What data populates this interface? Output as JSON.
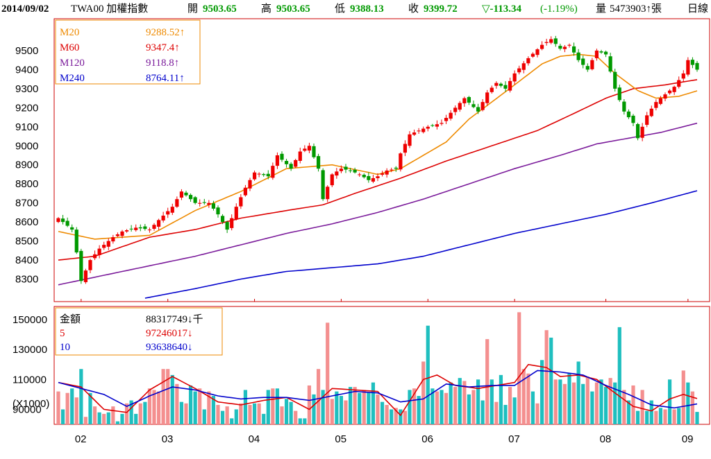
{
  "header": {
    "date": "2014/09/02",
    "symbol": "TWA00 加權指數",
    "open_label": "開",
    "open_value": "9503.65",
    "high_label": "高",
    "high_value": "9503.65",
    "low_label": "低",
    "low_value": "9388.13",
    "close_label": "收",
    "close_value": "9399.72",
    "change": "▽-113.34",
    "change_pct": "(-1.19%)",
    "volume_label": "量",
    "volume_value": "5473903↑張",
    "period": "日線"
  },
  "colors": {
    "up": "#ee0000",
    "down": "#009900",
    "ma20": "#ee8a00",
    "ma60": "#dd0000",
    "ma120": "#7a1a9a",
    "ma240": "#0000cc",
    "vol_up": "#f48f8f",
    "vol_down": "#1fbfbf",
    "vma5": "#dd0000",
    "vma10": "#0000cc",
    "frame": "#cc0000"
  },
  "price_legend": [
    {
      "name": "M20",
      "value": "9288.52↑",
      "color": "#ee8a00"
    },
    {
      "name": "M60",
      "value": "9347.4↑",
      "color": "#dd0000"
    },
    {
      "name": "M120",
      "value": "9118.8↑",
      "color": "#7a1a9a"
    },
    {
      "name": "M240",
      "value": "8764.11↑",
      "color": "#0000cc"
    }
  ],
  "volume_legend": [
    {
      "name": "金額",
      "value": "88317749↓千",
      "color": "#000000"
    },
    {
      "name": "5",
      "value": "97246017↓",
      "color": "#dd0000"
    },
    {
      "name": "10",
      "value": "93638640↓",
      "color": "#0000cc"
    }
  ],
  "volume_unit": "(X1000)",
  "chart_data": [
    {
      "type": "candlestick",
      "ylim": [
        8200,
        9620
      ],
      "y_ticks": [
        8300,
        8400,
        8500,
        8600,
        8700,
        8800,
        8900,
        9000,
        9100,
        9200,
        9300,
        9400,
        9500
      ],
      "x_month_ticks": [
        {
          "label": "02",
          "index": 5
        },
        {
          "label": "03",
          "index": 24
        },
        {
          "label": "04",
          "index": 43
        },
        {
          "label": "05",
          "index": 62
        },
        {
          "label": "06",
          "index": 81
        },
        {
          "label": "07",
          "index": 100
        },
        {
          "label": "08",
          "index": 120
        },
        {
          "label": "09",
          "index": 138
        }
      ],
      "num_days": 141,
      "close_anchors": [
        [
          0,
          8620
        ],
        [
          3,
          8560
        ],
        [
          4,
          8440
        ],
        [
          5,
          8290
        ],
        [
          7,
          8400
        ],
        [
          9,
          8460
        ],
        [
          12,
          8520
        ],
        [
          14,
          8550
        ],
        [
          17,
          8570
        ],
        [
          20,
          8560
        ],
        [
          22,
          8610
        ],
        [
          25,
          8680
        ],
        [
          27,
          8760
        ],
        [
          30,
          8700
        ],
        [
          33,
          8700
        ],
        [
          35,
          8640
        ],
        [
          37,
          8560
        ],
        [
          39,
          8680
        ],
        [
          41,
          8780
        ],
        [
          43,
          8860
        ],
        [
          46,
          8840
        ],
        [
          48,
          8950
        ],
        [
          51,
          8880
        ],
        [
          53,
          8970
        ],
        [
          55,
          9000
        ],
        [
          57,
          8880
        ],
        [
          58,
          8720
        ],
        [
          60,
          8850
        ],
        [
          62,
          8880
        ],
        [
          64,
          8870
        ],
        [
          66,
          8850
        ],
        [
          68,
          8820
        ],
        [
          70,
          8840
        ],
        [
          72,
          8870
        ],
        [
          74,
          8880
        ],
        [
          75,
          8960
        ],
        [
          77,
          9060
        ],
        [
          79,
          9080
        ],
        [
          81,
          9100
        ],
        [
          84,
          9120
        ],
        [
          87,
          9200
        ],
        [
          89,
          9250
        ],
        [
          92,
          9180
        ],
        [
          94,
          9280
        ],
        [
          96,
          9330
        ],
        [
          98,
          9300
        ],
        [
          100,
          9380
        ],
        [
          103,
          9460
        ],
        [
          106,
          9530
        ],
        [
          108,
          9560
        ],
        [
          110,
          9510
        ],
        [
          112,
          9530
        ],
        [
          114,
          9450
        ],
        [
          116,
          9400
        ],
        [
          118,
          9500
        ],
        [
          120,
          9480
        ],
        [
          122,
          9300
        ],
        [
          124,
          9180
        ],
        [
          126,
          9120
        ],
        [
          127,
          9040
        ],
        [
          129,
          9160
        ],
        [
          131,
          9230
        ],
        [
          133,
          9270
        ],
        [
          135,
          9310
        ],
        [
          137,
          9380
        ],
        [
          138,
          9450
        ],
        [
          140,
          9399.72
        ]
      ],
      "ma20": {
        "label": "M20",
        "start": 0,
        "anchors": [
          [
            0,
            8550
          ],
          [
            8,
            8510
          ],
          [
            20,
            8530
          ],
          [
            30,
            8660
          ],
          [
            40,
            8760
          ],
          [
            50,
            8880
          ],
          [
            60,
            8900
          ],
          [
            70,
            8850
          ],
          [
            75,
            8880
          ],
          [
            85,
            9020
          ],
          [
            90,
            9140
          ],
          [
            100,
            9320
          ],
          [
            106,
            9430
          ],
          [
            110,
            9470
          ],
          [
            114,
            9480
          ],
          [
            118,
            9470
          ],
          [
            122,
            9380
          ],
          [
            127,
            9290
          ],
          [
            131,
            9250
          ],
          [
            136,
            9260
          ],
          [
            140,
            9288.52
          ]
        ]
      },
      "ma60": {
        "label": "M60",
        "start": 0,
        "anchors": [
          [
            0,
            8400
          ],
          [
            8,
            8420
          ],
          [
            20,
            8520
          ],
          [
            30,
            8560
          ],
          [
            40,
            8620
          ],
          [
            50,
            8660
          ],
          [
            58,
            8690
          ],
          [
            65,
            8750
          ],
          [
            75,
            8830
          ],
          [
            85,
            8920
          ],
          [
            95,
            9000
          ],
          [
            105,
            9080
          ],
          [
            113,
            9170
          ],
          [
            120,
            9250
          ],
          [
            126,
            9300
          ],
          [
            133,
            9320
          ],
          [
            140,
            9347.4
          ]
        ]
      },
      "ma120": {
        "label": "M120",
        "start": 0,
        "anchors": [
          [
            0,
            8270
          ],
          [
            10,
            8320
          ],
          [
            20,
            8370
          ],
          [
            30,
            8420
          ],
          [
            40,
            8480
          ],
          [
            50,
            8540
          ],
          [
            60,
            8590
          ],
          [
            70,
            8650
          ],
          [
            80,
            8720
          ],
          [
            90,
            8800
          ],
          [
            100,
            8880
          ],
          [
            110,
            8950
          ],
          [
            118,
            9010
          ],
          [
            125,
            9040
          ],
          [
            132,
            9070
          ],
          [
            140,
            9118.8
          ]
        ]
      },
      "ma240": {
        "label": "M240",
        "start": 19,
        "anchors": [
          [
            19,
            8200
          ],
          [
            30,
            8250
          ],
          [
            40,
            8300
          ],
          [
            50,
            8340
          ],
          [
            60,
            8360
          ],
          [
            70,
            8380
          ],
          [
            80,
            8420
          ],
          [
            90,
            8480
          ],
          [
            100,
            8540
          ],
          [
            110,
            8590
          ],
          [
            120,
            8640
          ],
          [
            130,
            8700
          ],
          [
            140,
            8764.11
          ]
        ]
      }
    },
    {
      "type": "bar",
      "name": "金額",
      "ylim": [
        80000,
        157000
      ],
      "y_ticks": [
        90000,
        110000,
        130000,
        150000
      ],
      "volumes": [
        102000,
        90000,
        101000,
        104000,
        98000,
        117000,
        85000,
        101000,
        92000,
        88000,
        87000,
        88000,
        92000,
        82000,
        87000,
        94000,
        96000,
        87000,
        94000,
        95000,
        104000,
        103000,
        102000,
        117000,
        117000,
        113000,
        107000,
        95000,
        94000,
        106000,
        102000,
        104000,
        90000,
        102000,
        99000,
        93000,
        89000,
        92000,
        84000,
        90000,
        94000,
        103000,
        93000,
        94000,
        94000,
        87000,
        103000,
        104000,
        104000,
        92000,
        97000,
        95000,
        89000,
        84000,
        84000,
        106000,
        100000,
        117000,
        103000,
        148000,
        97000,
        102000,
        99000,
        96000,
        105000,
        105000,
        101000,
        103000,
        101000,
        108000,
        100000,
        95000,
        93000,
        90000,
        91000,
        90000,
        89000,
        103000,
        104000,
        99000,
        122000,
        146000,
        104000,
        102000,
        103000,
        101000,
        108000,
        105000,
        111000,
        109000,
        100000,
        103000,
        110000,
        96000,
        137000,
        110000,
        95000,
        113000,
        93000,
        105000,
        98000,
        155000,
        117000,
        114000,
        102000,
        94000,
        123000,
        143000,
        138000,
        110000,
        110000,
        107000,
        114000,
        108000,
        122000,
        107000,
        112000,
        102000,
        108000,
        110000,
        105000,
        111000,
        108000,
        145000,
        103000,
        96000,
        106000,
        89000,
        103000,
        89000,
        96000,
        89000,
        91000,
        90000,
        110000,
        90000,
        91000,
        116000,
        108000,
        102000,
        88300
      ],
      "volume_up_days": [
        0,
        2,
        4,
        6,
        8,
        10,
        12,
        15,
        18,
        20,
        21,
        22,
        23,
        24,
        26,
        28,
        31,
        33,
        35,
        37,
        40,
        42,
        44,
        47,
        49,
        52,
        55,
        57,
        59,
        60,
        63,
        65,
        67,
        70,
        72,
        74,
        76,
        78,
        80,
        83,
        85,
        87,
        89,
        91,
        94,
        96,
        99,
        101,
        102,
        103,
        105,
        107,
        109,
        111,
        113,
        116,
        118,
        121,
        124,
        126,
        128,
        131,
        133,
        135,
        137,
        139
      ],
      "vma5": [
        [
          0,
          108000
        ],
        [
          5,
          105000
        ],
        [
          10,
          90000
        ],
        [
          15,
          88000
        ],
        [
          20,
          103000
        ],
        [
          25,
          112000
        ],
        [
          30,
          104000
        ],
        [
          35,
          95000
        ],
        [
          40,
          93000
        ],
        [
          45,
          96000
        ],
        [
          50,
          98000
        ],
        [
          55,
          90000
        ],
        [
          60,
          104000
        ],
        [
          65,
          103000
        ],
        [
          70,
          102000
        ],
        [
          75,
          86000
        ],
        [
          80,
          110000
        ],
        [
          83,
          113000
        ],
        [
          87,
          106000
        ],
        [
          92,
          104000
        ],
        [
          96,
          106000
        ],
        [
          100,
          108000
        ],
        [
          103,
          120000
        ],
        [
          107,
          118000
        ],
        [
          110,
          112000
        ],
        [
          114,
          113000
        ],
        [
          118,
          110000
        ],
        [
          122,
          101000
        ],
        [
          126,
          92000
        ],
        [
          130,
          89000
        ],
        [
          134,
          97000
        ],
        [
          137,
          100000
        ],
        [
          140,
          97246
        ]
      ],
      "vma10": [
        [
          0,
          108000
        ],
        [
          5,
          104000
        ],
        [
          10,
          100000
        ],
        [
          15,
          92000
        ],
        [
          20,
          99000
        ],
        [
          25,
          105000
        ],
        [
          30,
          103000
        ],
        [
          35,
          99000
        ],
        [
          40,
          97000
        ],
        [
          45,
          98000
        ],
        [
          50,
          98000
        ],
        [
          55,
          96000
        ],
        [
          60,
          99000
        ],
        [
          65,
          102000
        ],
        [
          70,
          101000
        ],
        [
          75,
          95000
        ],
        [
          80,
          97000
        ],
        [
          85,
          107000
        ],
        [
          90,
          105000
        ],
        [
          95,
          106000
        ],
        [
          100,
          106000
        ],
        [
          105,
          116000
        ],
        [
          110,
          115000
        ],
        [
          115,
          113000
        ],
        [
          120,
          106000
        ],
        [
          125,
          100000
        ],
        [
          130,
          93000
        ],
        [
          135,
          91000
        ],
        [
          140,
          93639
        ]
      ]
    }
  ]
}
